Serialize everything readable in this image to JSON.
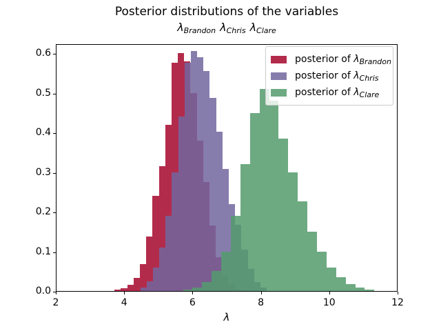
{
  "figure": {
    "background": "#ffffff"
  },
  "title": {
    "main": "Posterior distributions of the variables"
  },
  "subtitle": {
    "parts": [
      {
        "symbol": "λ",
        "subscript": "Brandon"
      },
      {
        "symbol": "λ",
        "subscript": "Chris"
      },
      {
        "symbol": "λ",
        "subscript": "Clare"
      }
    ]
  },
  "axes": {
    "xlabel": "λ",
    "x_tick_labels": [
      "2",
      "4",
      "6",
      "8",
      "10",
      "12"
    ],
    "y_tick_labels": [
      "0.0",
      "0.1",
      "0.2",
      "0.3",
      "0.4",
      "0.5",
      "0.6"
    ]
  },
  "legend": {
    "border_color": "#cccccc",
    "background": "#ffffff",
    "background_alpha": 0.8,
    "entries": [
      {
        "prefix": "posterior of ",
        "symbol": "λ",
        "subscript": "Brandon",
        "color": "#A6062C"
      },
      {
        "prefix": "posterior of ",
        "symbol": "λ",
        "subscript": "Chris",
        "color": "#72669F"
      },
      {
        "prefix": "posterior of ",
        "symbol": "λ",
        "subscript": "Clare",
        "color": "#549B6C"
      }
    ]
  },
  "chart_data": {
    "type": "histogram",
    "title": "Posterior distributions of the variables",
    "subtitle": "λ_Brandon λ_Chris λ_Clare",
    "xlabel": "λ",
    "ylabel": "",
    "xlim": [
      2,
      12
    ],
    "ylim": [
      0,
      0.625
    ],
    "x_ticks": [
      2,
      4,
      6,
      8,
      10,
      12
    ],
    "y_ticks": [
      0.0,
      0.1,
      0.2,
      0.3,
      0.4,
      0.5,
      0.6
    ],
    "grid": false,
    "legend_position": "upper right",
    "bar_alpha": 0.85,
    "histtype": "stepfilled",
    "series": [
      {
        "name": "posterior of λ_Brandon",
        "color": "#A6062C",
        "bin_start": 3.7,
        "bin_width": 0.185,
        "heights": [
          0.003,
          0.007,
          0.016,
          0.033,
          0.068,
          0.137,
          0.24,
          0.315,
          0.42,
          0.577,
          0.601,
          0.58,
          0.5,
          0.38,
          0.275,
          0.165,
          0.085,
          0.04,
          0.018,
          0.006
        ]
      },
      {
        "name": "posterior of λ_Chris",
        "color": "#72669F",
        "bin_start": 4.45,
        "bin_width": 0.185,
        "heights": [
          0.008,
          0.025,
          0.06,
          0.11,
          0.19,
          0.3,
          0.44,
          0.577,
          0.605,
          0.59,
          0.555,
          0.487,
          0.402,
          0.308,
          0.219,
          0.167,
          0.105,
          0.055,
          0.022,
          0.008
        ]
      },
      {
        "name": "posterior of λ_Clare",
        "color": "#549B6C",
        "bin_start": 5.7,
        "bin_width": 0.28,
        "heights": [
          0.003,
          0.009,
          0.022,
          0.05,
          0.1,
          0.19,
          0.32,
          0.45,
          0.51,
          0.48,
          0.385,
          0.3,
          0.227,
          0.15,
          0.1,
          0.06,
          0.035,
          0.018,
          0.008,
          0.003
        ]
      }
    ]
  }
}
